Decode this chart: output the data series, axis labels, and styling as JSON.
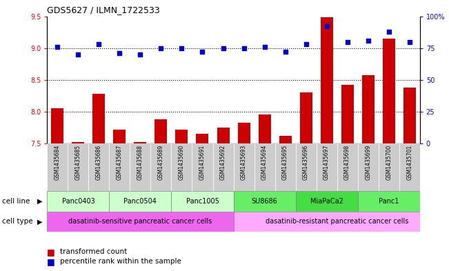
{
  "title": "GDS5627 / ILMN_1722533",
  "samples": [
    "GSM1435684",
    "GSM1435685",
    "GSM1435686",
    "GSM1435687",
    "GSM1435688",
    "GSM1435689",
    "GSM1435690",
    "GSM1435691",
    "GSM1435692",
    "GSM1435693",
    "GSM1435694",
    "GSM1435695",
    "GSM1435696",
    "GSM1435697",
    "GSM1435698",
    "GSM1435699",
    "GSM1435700",
    "GSM1435701"
  ],
  "transformed_count": [
    8.06,
    7.52,
    8.28,
    7.72,
    7.52,
    7.88,
    7.72,
    7.65,
    7.75,
    7.83,
    7.96,
    7.62,
    8.3,
    9.48,
    8.42,
    8.58,
    9.15,
    8.38
  ],
  "percentile_rank": [
    76,
    70,
    78,
    71,
    70,
    75,
    75,
    72,
    75,
    75,
    76,
    72,
    78,
    92,
    80,
    81,
    88,
    80
  ],
  "cell_lines": [
    {
      "name": "Panc0403",
      "start": 0,
      "end": 2,
      "color": "#ccffcc"
    },
    {
      "name": "Panc0504",
      "start": 3,
      "end": 5,
      "color": "#ccffcc"
    },
    {
      "name": "Panc1005",
      "start": 6,
      "end": 8,
      "color": "#ccffcc"
    },
    {
      "name": "SU8686",
      "start": 9,
      "end": 11,
      "color": "#66ee66"
    },
    {
      "name": "MiaPaCa2",
      "start": 12,
      "end": 14,
      "color": "#44dd44"
    },
    {
      "name": "Panc1",
      "start": 15,
      "end": 17,
      "color": "#66ee66"
    }
  ],
  "cell_type_sensitive": {
    "label": "dasatinib-sensitive pancreatic cancer cells",
    "start": 0,
    "end": 8,
    "color": "#ee66ee"
  },
  "cell_type_resistant": {
    "label": "dasatinib-resistant pancreatic cancer cells",
    "start": 9,
    "end": 17,
    "color": "#ffaaff"
  },
  "ylim_left": [
    7.5,
    9.5
  ],
  "ylim_right": [
    0,
    100
  ],
  "yticks_left": [
    7.5,
    8.0,
    8.5,
    9.0,
    9.5
  ],
  "yticks_right": [
    0,
    25,
    50,
    75,
    100
  ],
  "bar_color": "#cc0000",
  "dot_color": "#0000cc",
  "grid_values": [
    8.0,
    8.5,
    9.0
  ],
  "legend_bar_label": "transformed count",
  "legend_dot_label": "percentile rank within the sample",
  "sample_bg_color": "#cccccc"
}
